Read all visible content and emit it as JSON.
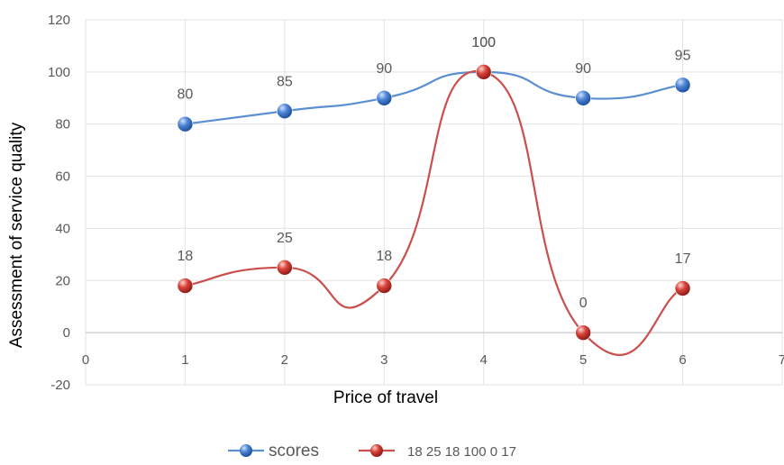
{
  "chart_data": {
    "type": "line",
    "title": "",
    "xlabel": "Price of travel",
    "ylabel": "Assessment of service quality",
    "xlim": [
      0,
      7
    ],
    "ylim": [
      -20,
      120
    ],
    "x_ticks": [
      "0",
      "1",
      "2",
      "3",
      "4",
      "5",
      "6",
      "7"
    ],
    "y_ticks": [
      "-20",
      "0",
      "20",
      "40",
      "60",
      "80",
      "100",
      "120"
    ],
    "grid": true,
    "smooth": true,
    "legend_position": "bottom",
    "x": [
      1,
      2,
      3,
      4,
      5,
      6
    ],
    "series": [
      {
        "name": "scores",
        "color": "#5b8fd0",
        "values": [
          80,
          85,
          90,
          100,
          90,
          95
        ],
        "labels": [
          "80",
          "85",
          "90",
          "100",
          "90",
          "95"
        ]
      },
      {
        "name": "18 25 18 100 0 17",
        "color": "#c9504c",
        "values": [
          18,
          25,
          18,
          100,
          0,
          17
        ],
        "labels": [
          "18",
          "25",
          "18",
          "100",
          "0",
          "17"
        ]
      }
    ]
  }
}
